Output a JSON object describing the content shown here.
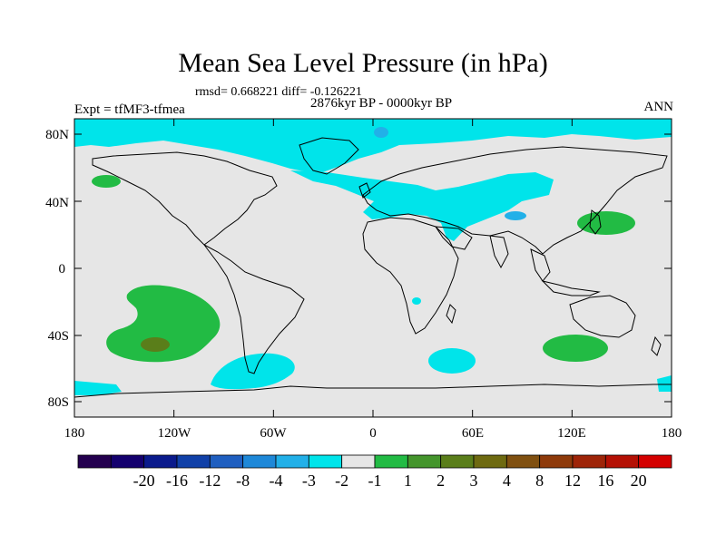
{
  "title": "Mean Sea Level Pressure (in hPa)",
  "stats_line": "rmsd= 0.668221 diff= -0.126221",
  "period_line": "2876kyr BP - 0000kyr BP",
  "left_label": "Expt = tfMF3-tfmea",
  "right_label": "ANN",
  "lat_labels": [
    "80N",
    "40N",
    "0",
    "40S",
    "80S"
  ],
  "lon_labels": [
    "180",
    "120W",
    "60W",
    "0",
    "60E",
    "120E",
    "180"
  ],
  "colorbar": {
    "colors": [
      "#24004f",
      "#14006e",
      "#0a1a8c",
      "#1040a8",
      "#1f5fc0",
      "#1e88d8",
      "#22b0e8",
      "#00e4ea",
      "#e6e6e6",
      "#22bb44",
      "#44952c",
      "#5a7e1a",
      "#6e6a10",
      "#805010",
      "#8e3a0a",
      "#9e2408",
      "#b41004",
      "#d40000"
    ],
    "labels": [
      "-20",
      "-16",
      "-12",
      "-8",
      "-4",
      "-3",
      "-2",
      "-1",
      "1",
      "2",
      "3",
      "4",
      "8",
      "12",
      "16",
      "20"
    ]
  },
  "colors": {
    "background_land": "#e6e6e6",
    "cyan_band": "#00e4ea",
    "light_blue": "#22b0e8",
    "green": "#22bb44",
    "olive": "#5a7e1a"
  }
}
